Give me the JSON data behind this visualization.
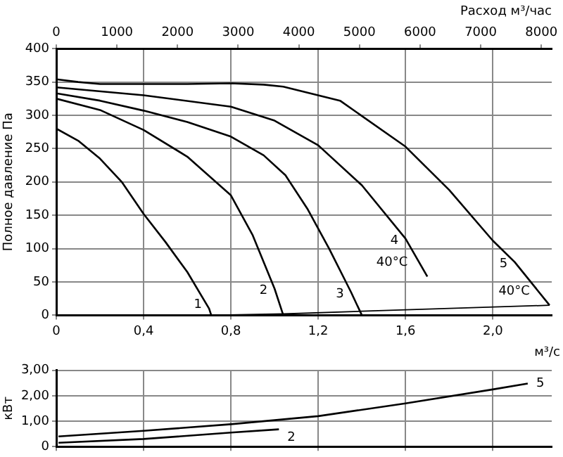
{
  "chart_data": [
    {
      "type": "line",
      "xlabel": "м³/с",
      "ylabel": "Полное давление Па",
      "x2label": "Расход м³/час",
      "xlim": [
        0,
        2.27
      ],
      "xticks": [
        0,
        {
          "value": 0.4,
          "label": "0,4"
        },
        {
          "value": 0.8,
          "label": "0,8"
        },
        {
          "value": 1.2,
          "label": "1,2"
        },
        {
          "value": 1.6,
          "label": "1,6"
        },
        {
          "value": 2.0,
          "label": "2,0"
        }
      ],
      "x2lim": [
        0,
        8172
      ],
      "x2ticks": [
        0,
        1000,
        2000,
        3000,
        4000,
        5000,
        6000,
        7000,
        8000
      ],
      "ylim": [
        0,
        400
      ],
      "yticks": [
        0,
        50,
        100,
        150,
        200,
        250,
        300,
        350,
        400
      ],
      "grid": true,
      "legend": false,
      "marker": "none",
      "line_style": "solid",
      "annotations": [
        {
          "text": "40°C",
          "x": 1.7,
          "y": 58
        },
        {
          "text": "40°C",
          "x": 2.26,
          "y": 15
        }
      ],
      "series": [
        {
          "name": "1",
          "color": "#000000",
          "x": [
            0,
            0.1,
            0.2,
            0.3,
            0.4,
            0.5,
            0.6,
            0.7,
            0.71
          ],
          "values": [
            280,
            262,
            235,
            200,
            152,
            110,
            65,
            10,
            0
          ]
        },
        {
          "name": "2",
          "color": "#000000",
          "x": [
            0,
            0.2,
            0.4,
            0.6,
            0.8,
            0.9,
            1.0,
            1.04
          ],
          "values": [
            325,
            308,
            278,
            238,
            180,
            120,
            40,
            0
          ]
        },
        {
          "name": "3",
          "color": "#000000",
          "x": [
            0,
            0.2,
            0.4,
            0.6,
            0.8,
            0.95,
            1.05,
            1.15,
            1.25,
            1.35,
            1.4
          ],
          "values": [
            333,
            322,
            307,
            290,
            268,
            240,
            210,
            160,
            100,
            35,
            0
          ]
        },
        {
          "name": "4",
          "color": "#000000",
          "x": [
            0,
            0.4,
            0.8,
            1.0,
            1.2,
            1.4,
            1.6,
            1.7
          ],
          "values": [
            342,
            330,
            313,
            292,
            255,
            195,
            115,
            58
          ]
        },
        {
          "name": "5",
          "color": "#000000",
          "x": [
            0,
            0.1,
            0.2,
            0.6,
            0.8,
            0.95,
            1.04,
            1.3,
            1.6,
            1.8,
            2.0,
            2.1,
            2.26
          ],
          "values": [
            354,
            350,
            347,
            347,
            348,
            346,
            343,
            322,
            253,
            188,
            112,
            80,
            15
          ]
        },
        {
          "color": "#000000",
          "x": [
            0.71,
            1.04,
            1.4,
            2.26
          ],
          "values": [
            0,
            2,
            6,
            15
          ]
        }
      ]
    },
    {
      "type": "line",
      "ylabel": "кВт",
      "tick_labels": "y",
      "xlim": [
        0,
        2.27
      ],
      "xticks": [
        {
          "value": 0,
          "label": null
        },
        {
          "value": 0.4,
          "label": null
        },
        {
          "value": 0.8,
          "label": null
        },
        {
          "value": 1.2,
          "label": null
        },
        {
          "value": 1.6,
          "label": null
        },
        {
          "value": 2.0,
          "label": null
        }
      ],
      "ylim": [
        0,
        3
      ],
      "yticks": [
        0,
        {
          "value": 1,
          "label": "1,00"
        },
        {
          "value": 2,
          "label": "2,00"
        },
        {
          "value": 3,
          "label": "3,00"
        }
      ],
      "grid": true,
      "legend": false,
      "marker": "none",
      "line_style": "solid",
      "series": [
        {
          "name": "2",
          "color": "#000000",
          "x": [
            0.01,
            0.4,
            0.8,
            1.02
          ],
          "values": [
            0.15,
            0.3,
            0.55,
            0.68
          ]
        },
        {
          "name": "5",
          "color": "#000000",
          "x": [
            0.01,
            0.4,
            0.8,
            1.2,
            1.6,
            2.0,
            2.16
          ],
          "values": [
            0.4,
            0.62,
            0.88,
            1.2,
            1.7,
            2.25,
            2.48
          ]
        }
      ]
    }
  ]
}
